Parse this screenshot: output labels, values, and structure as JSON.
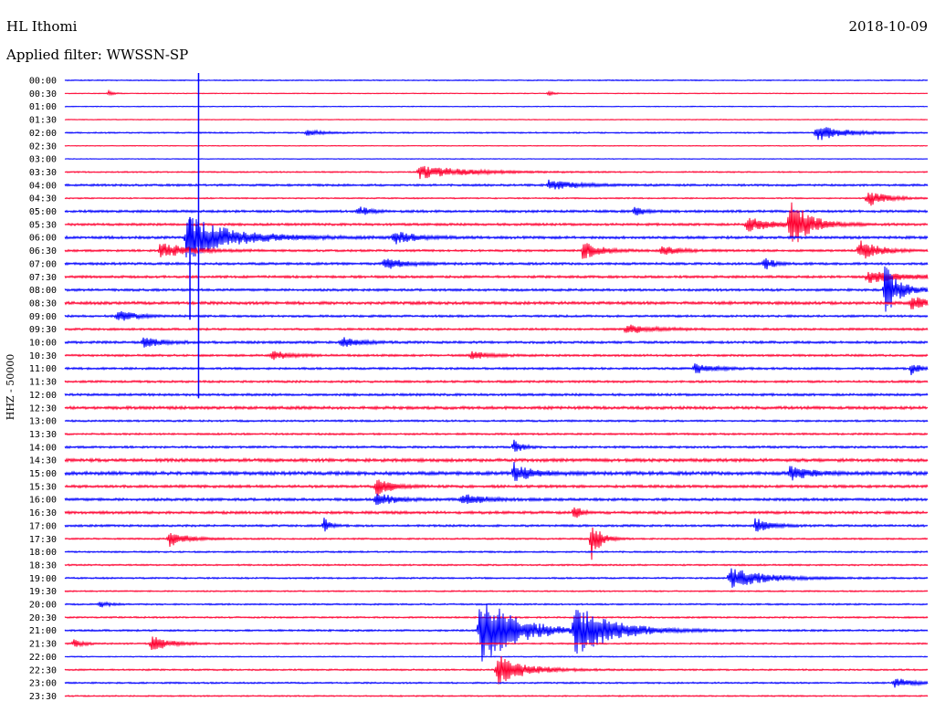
{
  "header": {
    "station": "HL Ithomi",
    "date": "2018-10-09",
    "filter_label": "Applied filter: WWSSN-SP"
  },
  "colors": {
    "blue": "#0000ff",
    "red": "#ff0030",
    "background": "#ffffff"
  },
  "chart_data": {
    "type": "line",
    "title": "",
    "ylabel": "HHZ - 50000",
    "xlabel": "",
    "grid": false,
    "trace_colors_alternate": [
      "blue",
      "red"
    ],
    "rows": [
      "00:00",
      "00:30",
      "01:00",
      "01:30",
      "02:00",
      "02:30",
      "03:00",
      "03:30",
      "04:00",
      "04:30",
      "05:00",
      "05:30",
      "06:00",
      "06:30",
      "07:00",
      "07:30",
      "08:00",
      "08:30",
      "09:00",
      "09:30",
      "10:00",
      "10:30",
      "11:00",
      "11:30",
      "12:00",
      "12:30",
      "13:00",
      "13:30",
      "14:00",
      "14:30",
      "15:00",
      "15:30",
      "16:00",
      "16:30",
      "17:00",
      "17:30",
      "18:00",
      "18:30",
      "19:00",
      "19:30",
      "20:00",
      "20:30",
      "21:00",
      "21:30",
      "22:00",
      "22:30",
      "23:00",
      "23:30"
    ],
    "row_noise": [
      0.4,
      0.3,
      0.3,
      0.3,
      0.5,
      0.3,
      0.3,
      0.5,
      0.8,
      0.5,
      0.9,
      0.9,
      1.0,
      0.8,
      0.9,
      0.9,
      0.9,
      1.1,
      0.8,
      0.8,
      0.9,
      0.8,
      0.8,
      0.8,
      0.9,
      1.1,
      0.7,
      0.7,
      0.8,
      1.2,
      1.3,
      1.0,
      1.0,
      1.0,
      0.8,
      0.6,
      0.6,
      0.6,
      0.6,
      0.5,
      0.6,
      0.6,
      0.7,
      0.6,
      0.4,
      0.6,
      0.6,
      0.5
    ],
    "events": [
      {
        "row": 1,
        "x": 0.05,
        "amp": 3,
        "dur": 0.006
      },
      {
        "row": 1,
        "x": 0.56,
        "amp": 3,
        "dur": 0.006
      },
      {
        "row": 4,
        "x": 0.87,
        "amp": 10,
        "dur": 0.03
      },
      {
        "row": 4,
        "x": 0.28,
        "amp": 3,
        "dur": 0.02
      },
      {
        "row": 7,
        "x": 0.41,
        "amp": 8,
        "dur": 0.05
      },
      {
        "row": 8,
        "x": 0.56,
        "amp": 6,
        "dur": 0.03
      },
      {
        "row": 9,
        "x": 0.93,
        "amp": 10,
        "dur": 0.02
      },
      {
        "row": 10,
        "x": 0.34,
        "amp": 7,
        "dur": 0.01
      },
      {
        "row": 10,
        "x": 0.66,
        "amp": 6,
        "dur": 0.01
      },
      {
        "row": 11,
        "x": 0.84,
        "amp": 30,
        "dur": 0.02
      },
      {
        "row": 11,
        "x": 0.79,
        "amp": 8,
        "dur": 0.03
      },
      {
        "row": 12,
        "x": 0.14,
        "amp": 25,
        "dur": 0.05
      },
      {
        "row": 12,
        "x": 0.38,
        "amp": 9,
        "dur": 0.02
      },
      {
        "row": 13,
        "x": 0.11,
        "amp": 10,
        "dur": 0.03
      },
      {
        "row": 13,
        "x": 0.6,
        "amp": 10,
        "dur": 0.02
      },
      {
        "row": 13,
        "x": 0.69,
        "amp": 6,
        "dur": 0.02
      },
      {
        "row": 13,
        "x": 0.92,
        "amp": 14,
        "dur": 0.02
      },
      {
        "row": 14,
        "x": 0.37,
        "amp": 8,
        "dur": 0.02
      },
      {
        "row": 14,
        "x": 0.81,
        "amp": 9,
        "dur": 0.01
      },
      {
        "row": 15,
        "x": 0.93,
        "amp": 7,
        "dur": 0.04
      },
      {
        "row": 16,
        "x": 0.95,
        "amp": 30,
        "dur": 0.015
      },
      {
        "row": 17,
        "x": 0.98,
        "amp": 8,
        "dur": 0.02
      },
      {
        "row": 18,
        "x": 0.06,
        "amp": 7,
        "dur": 0.02
      },
      {
        "row": 19,
        "x": 0.65,
        "amp": 5,
        "dur": 0.03
      },
      {
        "row": 20,
        "x": 0.09,
        "amp": 6,
        "dur": 0.02
      },
      {
        "row": 20,
        "x": 0.32,
        "amp": 6,
        "dur": 0.02
      },
      {
        "row": 21,
        "x": 0.24,
        "amp": 5,
        "dur": 0.02
      },
      {
        "row": 21,
        "x": 0.47,
        "amp": 5,
        "dur": 0.02
      },
      {
        "row": 22,
        "x": 0.73,
        "amp": 6,
        "dur": 0.02
      },
      {
        "row": 22,
        "x": 0.98,
        "amp": 8,
        "dur": 0.01
      },
      {
        "row": 28,
        "x": 0.52,
        "amp": 9,
        "dur": 0.008
      },
      {
        "row": 30,
        "x": 0.52,
        "amp": 12,
        "dur": 0.02
      },
      {
        "row": 30,
        "x": 0.84,
        "amp": 10,
        "dur": 0.02
      },
      {
        "row": 31,
        "x": 0.36,
        "amp": 12,
        "dur": 0.015
      },
      {
        "row": 32,
        "x": 0.36,
        "amp": 8,
        "dur": 0.02
      },
      {
        "row": 32,
        "x": 0.46,
        "amp": 8,
        "dur": 0.02
      },
      {
        "row": 33,
        "x": 0.59,
        "amp": 12,
        "dur": 0.006
      },
      {
        "row": 34,
        "x": 0.3,
        "amp": 10,
        "dur": 0.006
      },
      {
        "row": 34,
        "x": 0.8,
        "amp": 10,
        "dur": 0.015
      },
      {
        "row": 35,
        "x": 0.12,
        "amp": 9,
        "dur": 0.02
      },
      {
        "row": 35,
        "x": 0.61,
        "amp": 25,
        "dur": 0.01
      },
      {
        "row": 38,
        "x": 0.77,
        "amp": 12,
        "dur": 0.04
      },
      {
        "row": 40,
        "x": 0.04,
        "amp": 4,
        "dur": 0.01
      },
      {
        "row": 42,
        "x": 0.48,
        "amp": 40,
        "dur": 0.04
      },
      {
        "row": 42,
        "x": 0.59,
        "amp": 30,
        "dur": 0.04
      },
      {
        "row": 42,
        "x": 0.49,
        "amp": 5,
        "dur": 0.02
      },
      {
        "row": 43,
        "x": 0.1,
        "amp": 9,
        "dur": 0.02
      },
      {
        "row": 43,
        "x": 0.01,
        "amp": 5,
        "dur": 0.01
      },
      {
        "row": 45,
        "x": 0.5,
        "amp": 18,
        "dur": 0.03
      },
      {
        "row": 46,
        "x": 0.96,
        "amp": 6,
        "dur": 0.02
      }
    ],
    "spikes": [
      {
        "x": 0.155,
        "from_row": 0,
        "to_row": 24
      },
      {
        "x": 0.145,
        "from_row": 11,
        "to_row": 18
      }
    ]
  }
}
